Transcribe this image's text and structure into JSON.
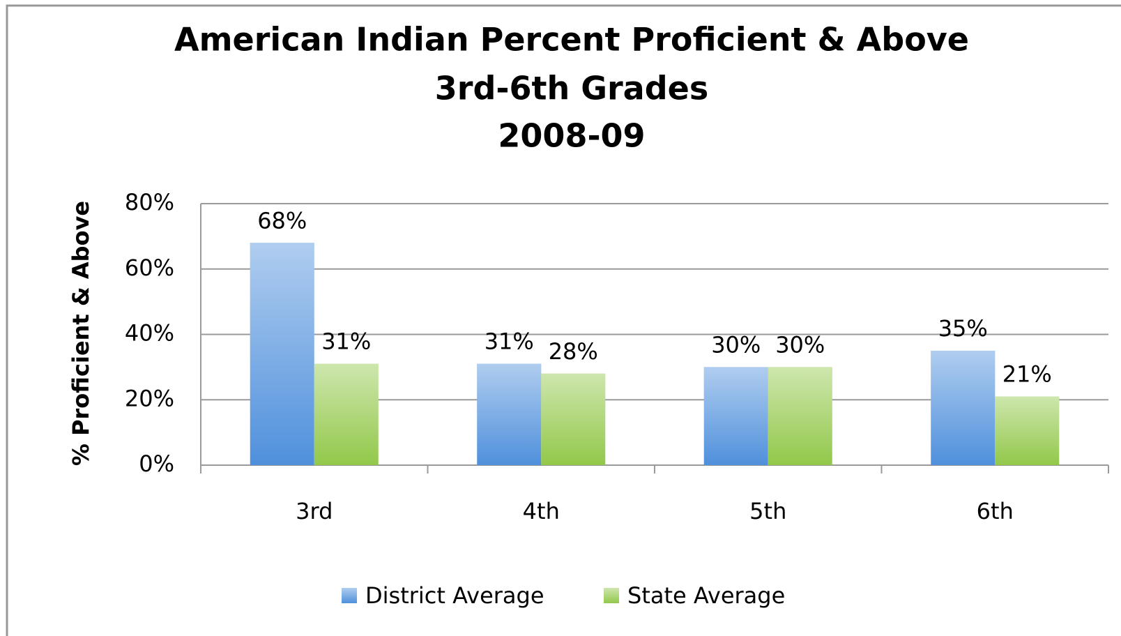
{
  "chart_data": {
    "type": "bar",
    "title": [
      "American Indian Percent Proficient & Above",
      "3rd-6th Grades",
      "2008-09"
    ],
    "y_axis_label": "% Proficient & Above",
    "categories": [
      "3rd",
      "4th",
      "5th",
      "6th"
    ],
    "series": [
      {
        "name": "District Average",
        "color": "#4f90dc",
        "values": [
          68,
          31,
          30,
          35
        ],
        "value_labels": [
          "68%",
          "31%",
          "30%",
          "35%"
        ]
      },
      {
        "name": "State Average",
        "color": "#92c84a",
        "values": [
          31,
          28,
          30,
          21
        ],
        "value_labels": [
          "31%",
          "28%",
          "30%",
          "21%"
        ]
      }
    ],
    "ylim": [
      0,
      80
    ],
    "yticks": [
      {
        "value": 0,
        "label": "0%"
      },
      {
        "value": 20,
        "label": "20%"
      },
      {
        "value": 40,
        "label": "40%"
      },
      {
        "value": 60,
        "label": "60%"
      },
      {
        "value": 80,
        "label": "80%"
      }
    ],
    "grid": true,
    "legend": "bottom"
  }
}
